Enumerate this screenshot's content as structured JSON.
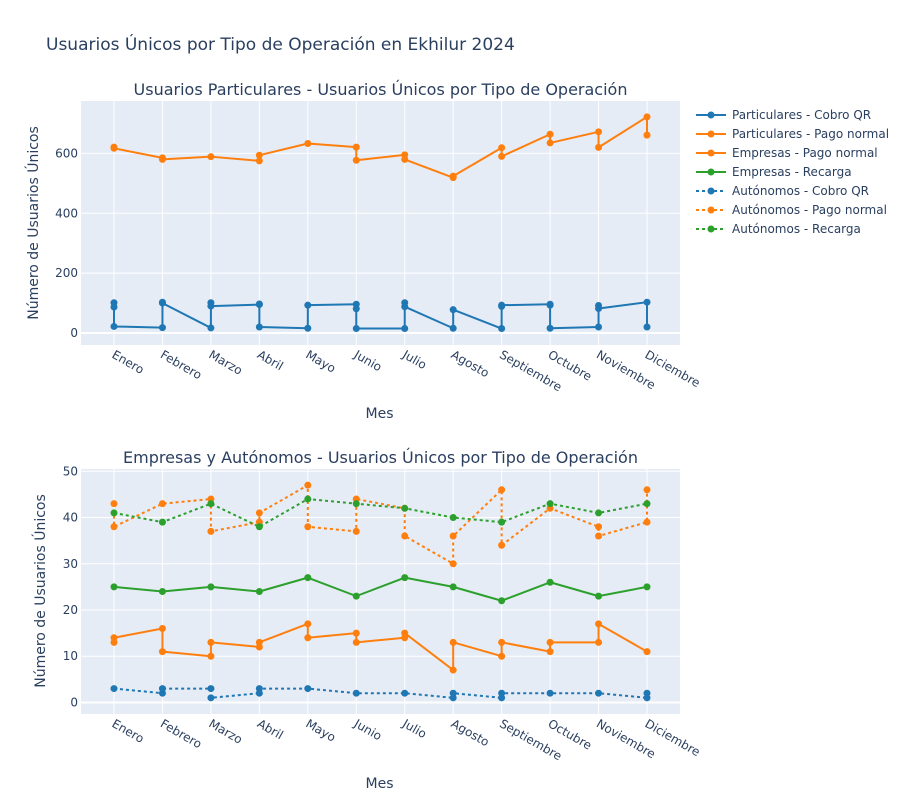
{
  "title": "Usuarios Únicos por Tipo de Operación en Ekhilur 2024",
  "colors": {
    "blue": "#1f77b4",
    "orange": "#ff7f0e",
    "green": "#2ca02c",
    "plot_bg": "#e5ecf6",
    "grid": "#ffffff",
    "text": "#2a3f5f"
  },
  "legend": [
    {
      "label": "Particulares - Cobro QR",
      "color": "#1f77b4",
      "dash": false
    },
    {
      "label": "Particulares - Pago normal",
      "color": "#ff7f0e",
      "dash": false
    },
    {
      "label": "Empresas - Pago normal",
      "color": "#ff7f0e",
      "dash": false
    },
    {
      "label": "Empresas - Recarga",
      "color": "#2ca02c",
      "dash": false
    },
    {
      "label": "Autónomos - Cobro QR",
      "color": "#1f77b4",
      "dash": true
    },
    {
      "label": "Autónomos - Pago normal",
      "color": "#ff7f0e",
      "dash": true
    },
    {
      "label": "Autónomos - Recarga",
      "color": "#2ca02c",
      "dash": true
    }
  ],
  "chart_data": [
    {
      "type": "line",
      "title": "Usuarios Particulares - Usuarios Únicos por Tipo de Operación",
      "xlabel": "Mes",
      "ylabel": "Número de Usuarios Únicos",
      "categories": [
        "Enero",
        "Febrero",
        "Marzo",
        "Abril",
        "Mayo",
        "Junio",
        "Julio",
        "Agosto",
        "Septiembre",
        "Octubre",
        "Noviembre",
        "Diciembre"
      ],
      "yticks": [
        0,
        200,
        400,
        600
      ],
      "ylim": [
        -40,
        775
      ],
      "series": [
        {
          "name": "Particulares - Cobro QR",
          "color": "#1f77b4",
          "dash": false,
          "points": [
            [
              "Enero",
              101
            ],
            [
              "Enero",
              87
            ],
            [
              "Enero",
              22
            ],
            [
              "Febrero",
              18
            ],
            [
              "Febrero",
              103
            ],
            [
              "Febrero",
              100
            ],
            [
              "Marzo",
              17
            ],
            [
              "Marzo",
              101
            ],
            [
              "Marzo",
              90
            ],
            [
              "Abril",
              95
            ],
            [
              "Abril",
              97
            ],
            [
              "Abril",
              20
            ],
            [
              "Mayo",
              16
            ],
            [
              "Mayo",
              93
            ],
            [
              "Junio",
              96
            ],
            [
              "Junio",
              81
            ],
            [
              "Junio",
              15
            ],
            [
              "Julio",
              15
            ],
            [
              "Julio",
              101
            ],
            [
              "Julio",
              88
            ],
            [
              "Agosto",
              16
            ],
            [
              "Agosto",
              78
            ],
            [
              "Septiembre",
              15
            ],
            [
              "Septiembre",
              89
            ],
            [
              "Septiembre",
              93
            ],
            [
              "Octubre",
              96
            ],
            [
              "Octubre",
              93
            ],
            [
              "Octubre",
              16
            ],
            [
              "Noviembre",
              20
            ],
            [
              "Noviembre",
              92
            ],
            [
              "Noviembre",
              82
            ],
            [
              "Diciembre",
              103
            ],
            [
              "Diciembre",
              20
            ]
          ]
        },
        {
          "name": "Particulares - Pago normal",
          "color": "#ff7f0e",
          "dash": false,
          "points": [
            [
              "Enero",
              621
            ],
            [
              "Enero",
              617
            ],
            [
              "Febrero",
              585
            ],
            [
              "Febrero",
              580
            ],
            [
              "Marzo",
              589
            ],
            [
              "Abril",
              575
            ],
            [
              "Abril",
              594
            ],
            [
              "Mayo",
              633
            ],
            [
              "Junio",
              621
            ],
            [
              "Junio",
              577
            ],
            [
              "Julio",
              595
            ],
            [
              "Julio",
              580
            ],
            [
              "Agosto",
              519
            ],
            [
              "Agosto",
              524
            ],
            [
              "Septiembre",
              619
            ],
            [
              "Septiembre",
              590
            ],
            [
              "Octubre",
              664
            ],
            [
              "Octubre",
              635
            ],
            [
              "Noviembre",
              672
            ],
            [
              "Noviembre",
              620
            ],
            [
              "Diciembre",
              722
            ],
            [
              "Diciembre",
              661
            ]
          ]
        }
      ]
    },
    {
      "type": "line",
      "title": "Empresas y Autónomos - Usuarios Únicos por Tipo de Operación",
      "xlabel": "Mes",
      "ylabel": "Número de Usuarios Únicos",
      "categories": [
        "Enero",
        "Febrero",
        "Marzo",
        "Abril",
        "Mayo",
        "Junio",
        "Julio",
        "Agosto",
        "Septiembre",
        "Octubre",
        "Noviembre",
        "Diciembre"
      ],
      "yticks": [
        0,
        10,
        20,
        30,
        40,
        50
      ],
      "ylim": [
        -2.5,
        50.5
      ],
      "series": [
        {
          "name": "Empresas - Pago normal",
          "color": "#ff7f0e",
          "dash": false,
          "points": [
            [
              "Enero",
              13
            ],
            [
              "Enero",
              14
            ],
            [
              "Febrero",
              16
            ],
            [
              "Febrero",
              11
            ],
            [
              "Marzo",
              10
            ],
            [
              "Marzo",
              13
            ],
            [
              "Abril",
              12
            ],
            [
              "Abril",
              13
            ],
            [
              "Mayo",
              17
            ],
            [
              "Mayo",
              14
            ],
            [
              "Junio",
              15
            ],
            [
              "Junio",
              13
            ],
            [
              "Julio",
              14
            ],
            [
              "Julio",
              15
            ],
            [
              "Agosto",
              7
            ],
            [
              "Agosto",
              13
            ],
            [
              "Septiembre",
              10
            ],
            [
              "Septiembre",
              13
            ],
            [
              "Octubre",
              11
            ],
            [
              "Octubre",
              13
            ],
            [
              "Noviembre",
              13
            ],
            [
              "Noviembre",
              17
            ],
            [
              "Diciembre",
              11
            ]
          ]
        },
        {
          "name": "Empresas - Recarga",
          "color": "#2ca02c",
          "dash": false,
          "points": [
            [
              "Enero",
              25
            ],
            [
              "Febrero",
              24
            ],
            [
              "Marzo",
              25
            ],
            [
              "Abril",
              24
            ],
            [
              "Mayo",
              27
            ],
            [
              "Junio",
              23
            ],
            [
              "Julio",
              27
            ],
            [
              "Agosto",
              25
            ],
            [
              "Septiembre",
              22
            ],
            [
              "Octubre",
              26
            ],
            [
              "Noviembre",
              23
            ],
            [
              "Diciembre",
              25
            ]
          ]
        },
        {
          "name": "Autónomos - Cobro QR",
          "color": "#1f77b4",
          "dash": true,
          "points": [
            [
              "Enero",
              3
            ],
            [
              "Febrero",
              2
            ],
            [
              "Febrero",
              3
            ],
            [
              "Marzo",
              3
            ],
            [
              "Marzo",
              1
            ],
            [
              "Abril",
              2
            ],
            [
              "Abril",
              3
            ],
            [
              "Mayo",
              3
            ],
            [
              "Junio",
              2
            ],
            [
              "Julio",
              2
            ],
            [
              "Agosto",
              1
            ],
            [
              "Agosto",
              2
            ],
            [
              "Septiembre",
              1
            ],
            [
              "Septiembre",
              2
            ],
            [
              "Octubre",
              2
            ],
            [
              "Noviembre",
              2
            ],
            [
              "Diciembre",
              1
            ],
            [
              "Diciembre",
              2
            ]
          ]
        },
        {
          "name": "Autónomos - Pago normal",
          "color": "#ff7f0e",
          "dash": true,
          "points": [
            [
              "Enero",
              43
            ],
            [
              "Enero",
              38
            ],
            [
              "Febrero",
              43
            ],
            [
              "Marzo",
              44
            ],
            [
              "Marzo",
              37
            ],
            [
              "Abril",
              39
            ],
            [
              "Abril",
              41
            ],
            [
              "Mayo",
              47
            ],
            [
              "Mayo",
              38
            ],
            [
              "Junio",
              37
            ],
            [
              "Junio",
              44
            ],
            [
              "Julio",
              42
            ],
            [
              "Julio",
              36
            ],
            [
              "Agosto",
              30
            ],
            [
              "Agosto",
              36
            ],
            [
              "Septiembre",
              46
            ],
            [
              "Septiembre",
              34
            ],
            [
              "Octubre",
              42
            ],
            [
              "Noviembre",
              38
            ],
            [
              "Noviembre",
              36
            ],
            [
              "Diciembre",
              39
            ],
            [
              "Diciembre",
              46
            ]
          ]
        },
        {
          "name": "Autónomos - Recarga",
          "color": "#2ca02c",
          "dash": true,
          "points": [
            [
              "Enero",
              41
            ],
            [
              "Febrero",
              39
            ],
            [
              "Marzo",
              43
            ],
            [
              "Abril",
              38
            ],
            [
              "Mayo",
              44
            ],
            [
              "Junio",
              43
            ],
            [
              "Julio",
              42
            ],
            [
              "Agosto",
              40
            ],
            [
              "Septiembre",
              39
            ],
            [
              "Octubre",
              43
            ],
            [
              "Noviembre",
              41
            ],
            [
              "Diciembre",
              43
            ]
          ]
        }
      ]
    }
  ]
}
